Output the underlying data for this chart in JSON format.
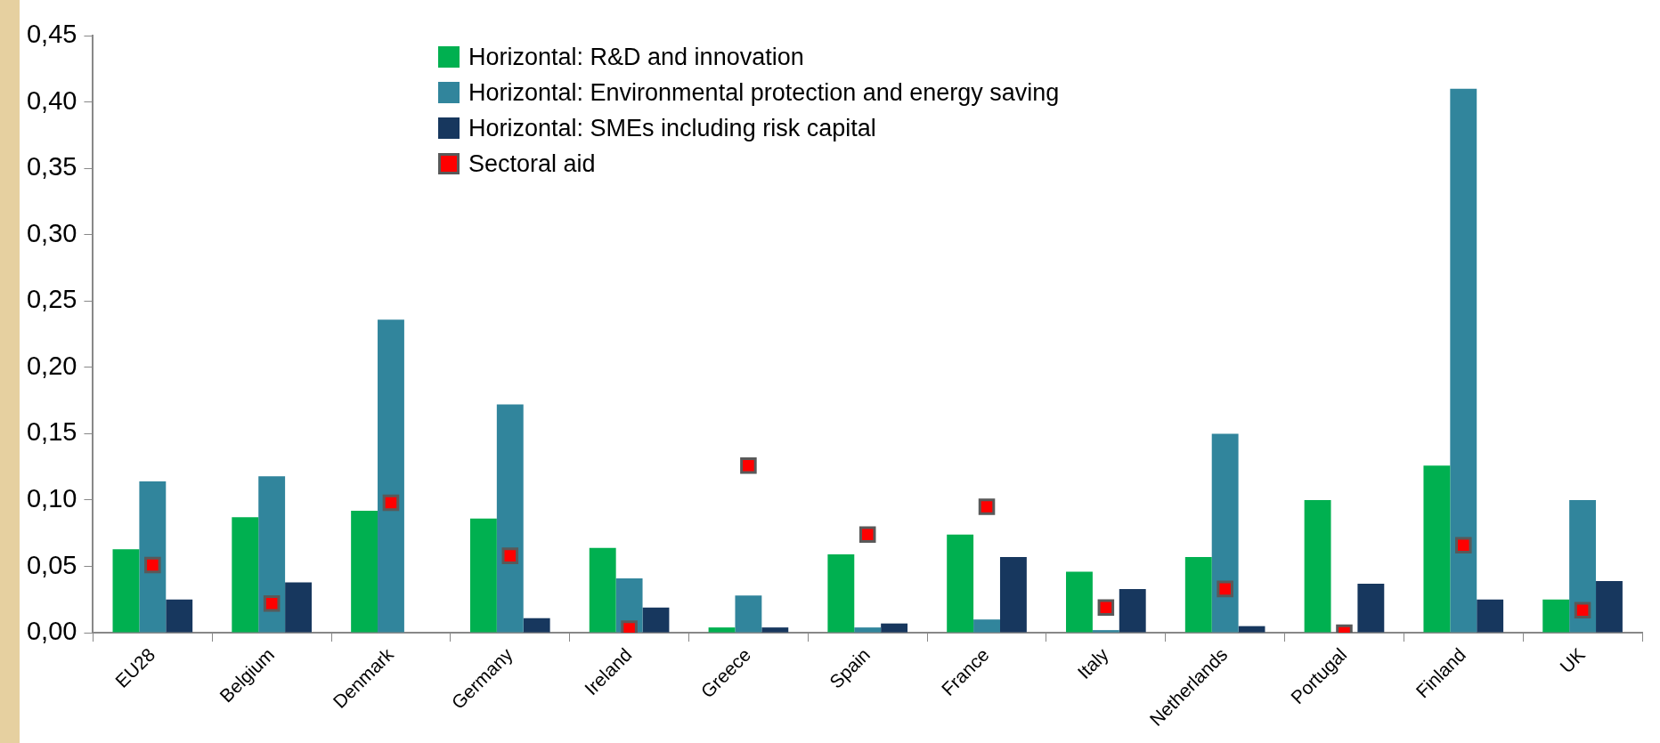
{
  "chart_data": {
    "type": "bar",
    "categories": [
      "EU28",
      "Belgium",
      "Denmark",
      "Germany",
      "Ireland",
      "Greece",
      "Spain",
      "France",
      "Italy",
      "Netherlands",
      "Portugal",
      "Finland",
      "UK"
    ],
    "series": [
      {
        "name": "Horizontal: R&D and innovation",
        "color": "#00b050",
        "values": [
          0.063,
          0.087,
          0.092,
          0.086,
          0.064,
          0.004,
          0.059,
          0.074,
          0.046,
          0.057,
          0.1,
          0.126,
          0.025
        ]
      },
      {
        "name": "Horizontal: Environmental protection and energy saving",
        "color": "#31859c",
        "values": [
          0.114,
          0.118,
          0.236,
          0.172,
          0.041,
          0.028,
          0.004,
          0.01,
          0.002,
          0.15,
          null,
          0.41,
          0.1
        ]
      },
      {
        "name": "Horizontal: SMEs including risk capital",
        "color": "#17375e",
        "values": [
          0.025,
          0.038,
          0.0,
          0.011,
          0.019,
          0.004,
          0.007,
          0.057,
          0.033,
          0.005,
          0.037,
          0.025,
          0.039
        ]
      },
      {
        "name": "Sectoral aid",
        "type": "scatter",
        "color": "#ff0000",
        "x": [
          "EU28",
          "Belgium",
          "Denmark",
          "Germany",
          "Ireland",
          "Greece",
          "Spain",
          "France",
          "Italy",
          "Netherlands",
          "Portugal",
          "Finland",
          "UK"
        ],
        "values": [
          0.051,
          0.022,
          0.098,
          0.058,
          0.003,
          0.126,
          0.074,
          0.095,
          0.019,
          0.033,
          0.0,
          0.066,
          0.017
        ]
      }
    ],
    "ylim": [
      0,
      0.45
    ],
    "yticks": [
      {
        "value": 0,
        "label": "0,00"
      },
      {
        "value": 0.05,
        "label": "0,05"
      },
      {
        "value": 0.1,
        "label": "0,10"
      },
      {
        "value": 0.15,
        "label": "0,15"
      },
      {
        "value": 0.2,
        "label": "0,20"
      },
      {
        "value": 0.25,
        "label": "0,25"
      },
      {
        "value": 0.3,
        "label": "0,30"
      },
      {
        "value": 0.35,
        "label": "0,35"
      },
      {
        "value": 0.4,
        "label": "0,40"
      },
      {
        "value": 0.45,
        "label": "0,45"
      }
    ],
    "grid": false,
    "legend": "top",
    "marker": "square"
  }
}
